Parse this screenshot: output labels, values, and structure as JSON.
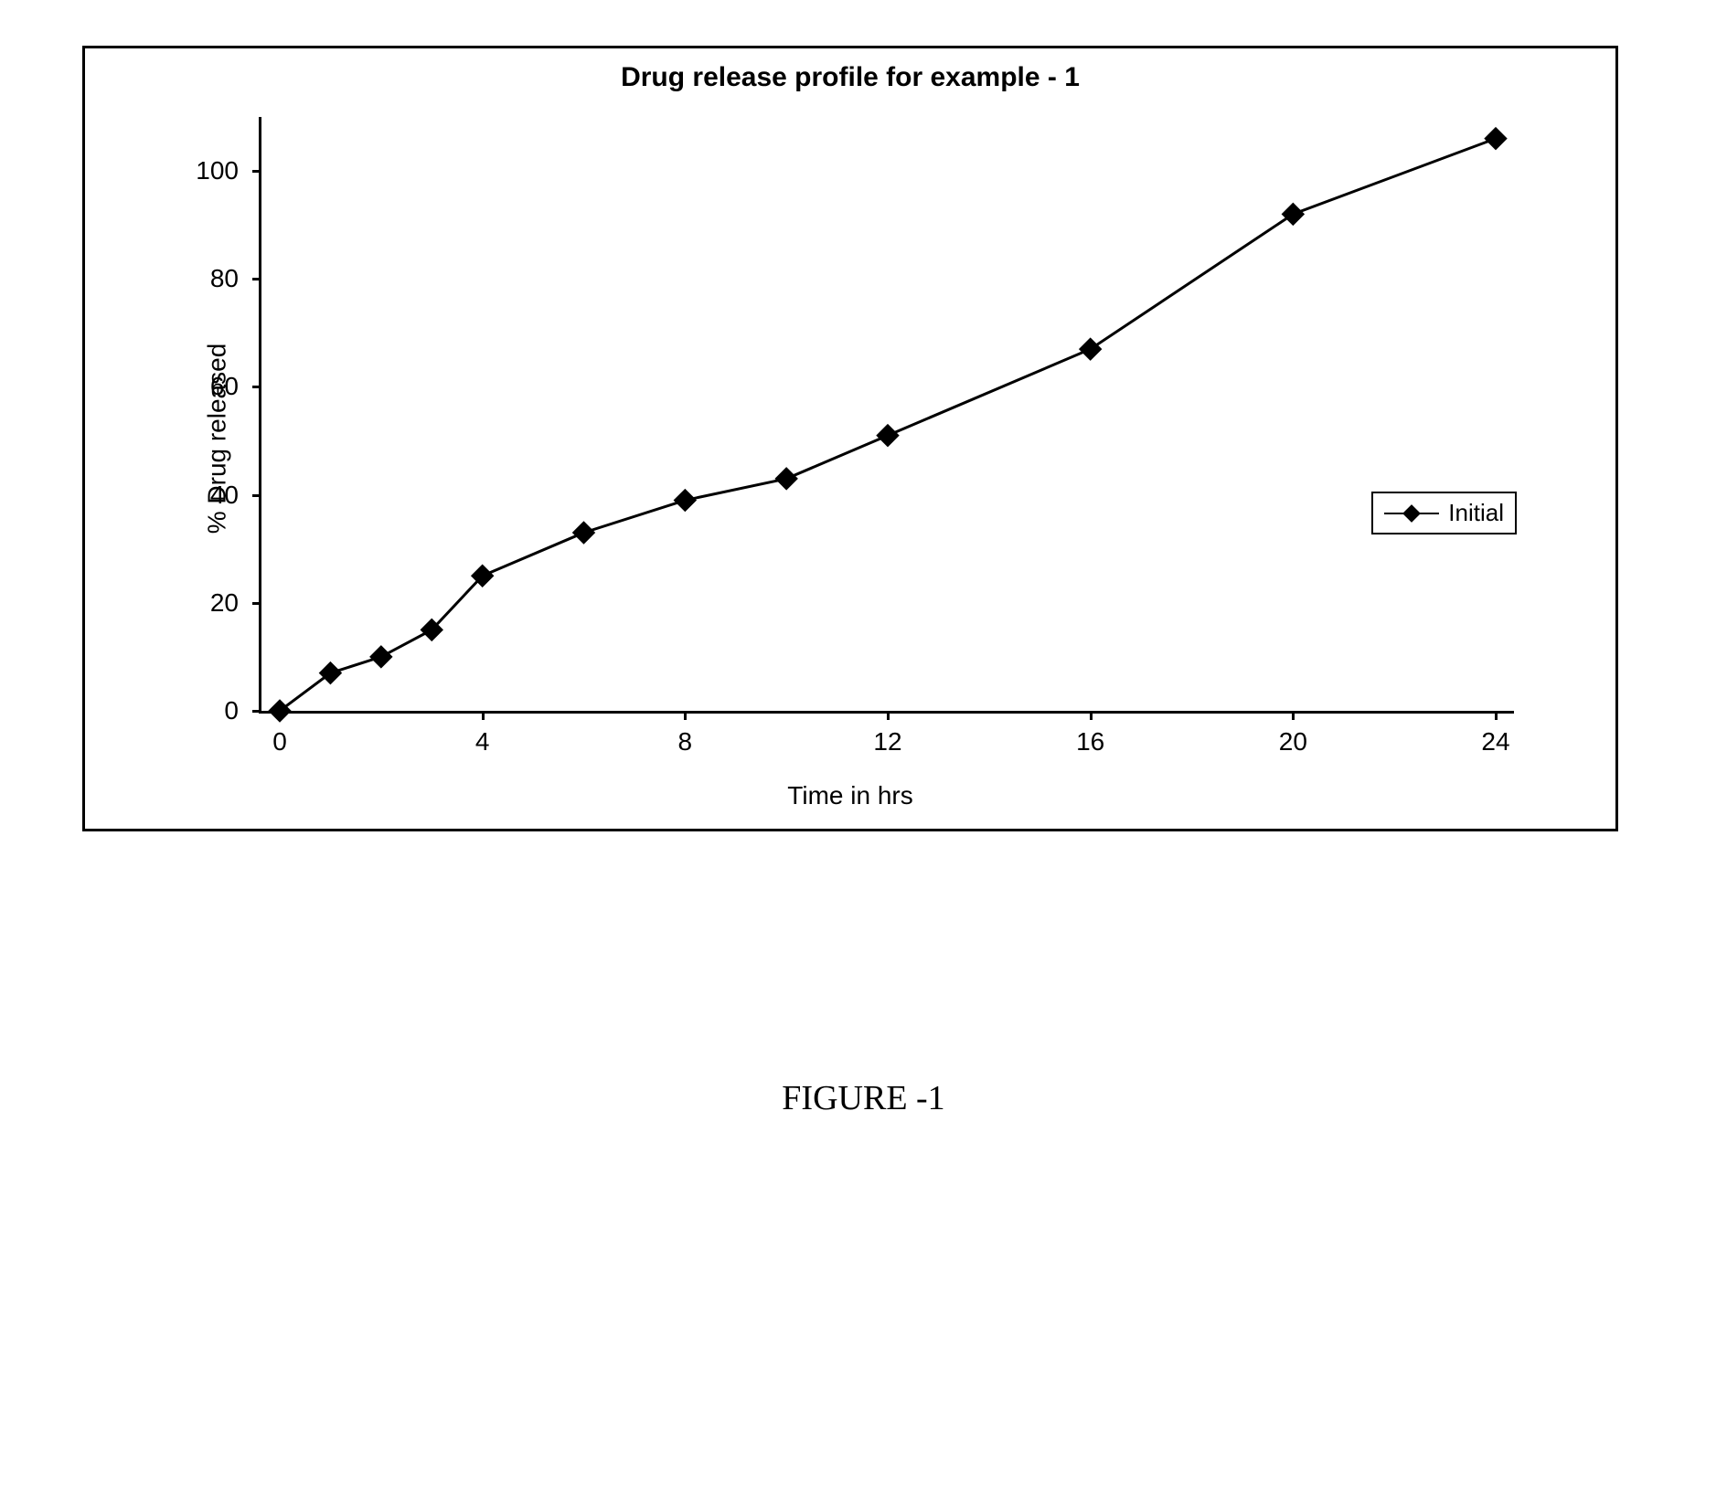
{
  "chart": {
    "type": "line",
    "title": "Drug release profile for example - 1",
    "xlabel": "Time in hrs",
    "ylabel": "% Drug released",
    "xlim": [
      0,
      24
    ],
    "ylim": [
      0,
      100
    ],
    "xtick_step": 4,
    "ytick_step": 20,
    "xticks": [
      0,
      4,
      8,
      12,
      16,
      20,
      24
    ],
    "yticks": [
      0,
      20,
      40,
      60,
      80,
      100
    ],
    "line_color": "#000000",
    "line_width": 3,
    "marker_style": "diamond",
    "marker_color": "#000000",
    "marker_size": 9,
    "background_color": "#ffffff",
    "border_color": "#000000",
    "axis_fontsize": 28,
    "title_fontsize": 30,
    "title_fontweight": "bold",
    "legend": {
      "label": "Initial",
      "position": "right-middle"
    },
    "series": {
      "x": [
        0,
        1,
        2,
        3,
        4,
        6,
        8,
        10,
        12,
        16,
        20,
        24
      ],
      "y": [
        0,
        7,
        10,
        15,
        25,
        33,
        39,
        43,
        51,
        67,
        92,
        106
      ]
    }
  },
  "caption": "FIGURE -1"
}
